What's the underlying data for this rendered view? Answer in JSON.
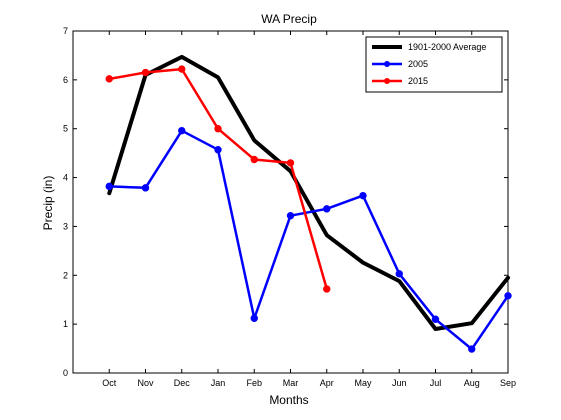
{
  "chart_data": {
    "type": "line",
    "title": "WA Precip",
    "xlabel": "Months",
    "ylabel": "Precip (in)",
    "categories": [
      "Oct",
      "Nov",
      "Dec",
      "Jan",
      "Feb",
      "Mar",
      "Apr",
      "May",
      "Jun",
      "Jul",
      "Aug",
      "Sep"
    ],
    "ylim": [
      0,
      7
    ],
    "yticks": [
      "0",
      "1",
      "2",
      "3",
      "4",
      "5",
      "6",
      "7"
    ],
    "legend_position": "top-right",
    "grid": false,
    "series": [
      {
        "name": "1901-2000 Average",
        "color": "#000000",
        "markers": false,
        "values": [
          3.68,
          6.1,
          6.47,
          6.05,
          4.76,
          4.13,
          2.82,
          2.26,
          1.88,
          0.9,
          1.02,
          1.95
        ]
      },
      {
        "name": "2005",
        "color": "#0000ff",
        "markers": true,
        "values": [
          3.82,
          3.79,
          4.96,
          4.57,
          1.12,
          3.22,
          3.36,
          3.63,
          2.03,
          1.1,
          0.49,
          1.58
        ]
      },
      {
        "name": "2015",
        "color": "#ff0000",
        "markers": true,
        "values": [
          6.02,
          6.15,
          6.22,
          5.0,
          4.37,
          4.3,
          1.72,
          null,
          null,
          null,
          null,
          null
        ]
      }
    ]
  }
}
